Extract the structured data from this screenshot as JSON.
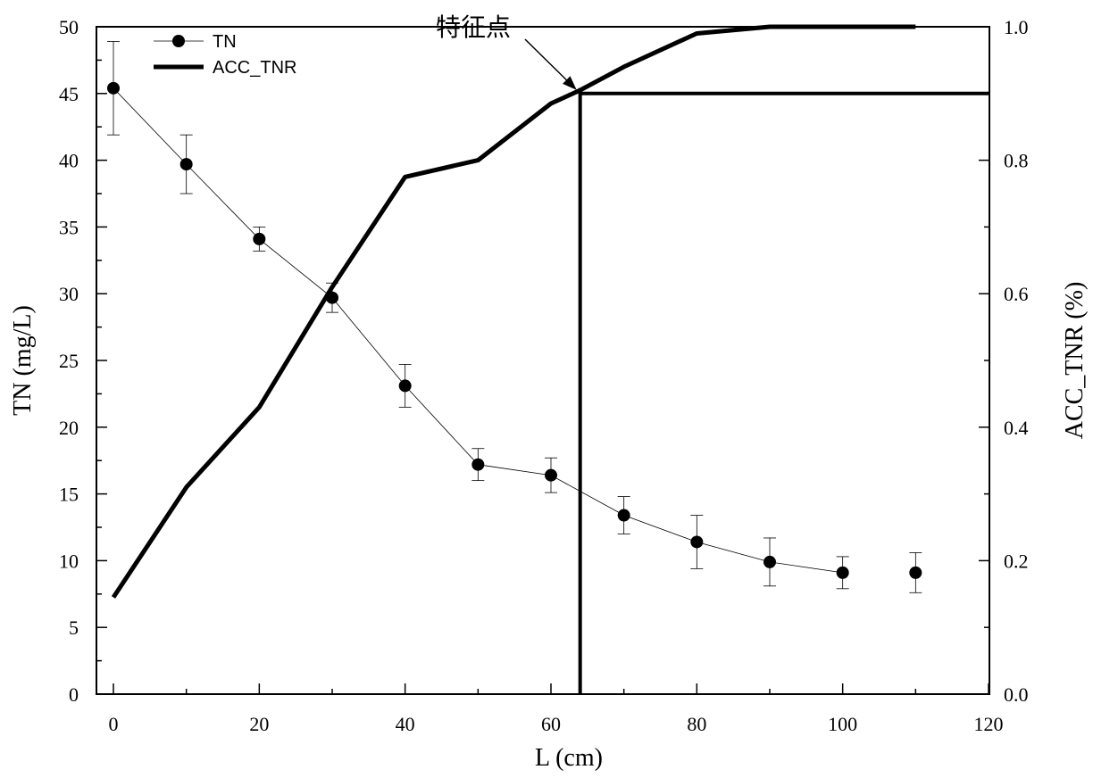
{
  "chart_data": {
    "type": "line",
    "title": "",
    "xlabel": "L (cm)",
    "ylabel": "TN (mg/L)",
    "y2label": "ACC_TNR (%)",
    "xlim": [
      0,
      120
    ],
    "ylim": [
      0,
      50
    ],
    "y2lim": [
      0.0,
      1.0
    ],
    "x_ticks": [
      "0",
      "20",
      "40",
      "60",
      "80",
      "100",
      "120"
    ],
    "y_ticks": [
      "0",
      "5",
      "10",
      "15",
      "20",
      "25",
      "30",
      "35",
      "40",
      "45",
      "50"
    ],
    "y2_ticks": [
      "0.0",
      "0.2",
      "0.4",
      "0.6",
      "0.8",
      "1.0"
    ],
    "legend_position": "top-left",
    "series": [
      {
        "name": "TN",
        "axis": "left",
        "style": "line-with-circles-and-error-bars",
        "x": [
          0,
          10,
          20,
          30,
          40,
          50,
          60,
          70,
          80,
          90,
          100,
          110
        ],
        "y": [
          45.4,
          39.7,
          34.1,
          29.7,
          23.1,
          17.2,
          16.4,
          13.4,
          11.4,
          9.9,
          9.1,
          9.1
        ],
        "error": [
          3.5,
          2.2,
          0.9,
          1.1,
          1.6,
          1.2,
          1.3,
          1.4,
          2.0,
          1.8,
          1.2,
          1.5
        ]
      },
      {
        "name": "ACC_TNR",
        "axis": "right",
        "style": "thick-line",
        "x": [
          0,
          10,
          20,
          30,
          40,
          50,
          60,
          64,
          70,
          80,
          90,
          100,
          110
        ],
        "y": [
          0.145,
          0.31,
          0.43,
          0.61,
          0.775,
          0.8,
          0.885,
          0.905,
          0.94,
          0.99,
          1.0,
          1.0,
          1.0
        ]
      }
    ],
    "annotations": [
      {
        "text": "特征点",
        "x": 64,
        "y2": 0.9,
        "type": "arrow-label"
      }
    ],
    "reference_lines": [
      {
        "orientation": "vertical",
        "x": 64
      },
      {
        "orientation": "horizontal",
        "y2": 0.9
      }
    ]
  }
}
